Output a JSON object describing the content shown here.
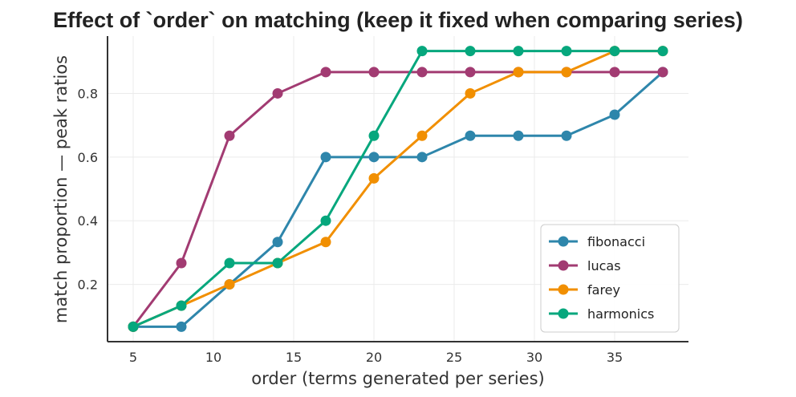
{
  "chart_data": {
    "type": "line",
    "title": "Effect of `order` on matching (keep it fixed when comparing series)",
    "xlabel": "order (terms generated per series)",
    "ylabel": "match proportion — peak ratios",
    "xlim": [
      3.4,
      39.6
    ],
    "ylim": [
      0.02,
      0.98
    ],
    "xticks": [
      5,
      10,
      15,
      20,
      25,
      30,
      35
    ],
    "yticks": [
      0.2,
      0.4,
      0.6,
      0.8
    ],
    "xtick_labels": [
      "5",
      "10",
      "15",
      "20",
      "25",
      "30",
      "35"
    ],
    "ytick_labels": [
      "0.2",
      "0.4",
      "0.6",
      "0.8"
    ],
    "grid": true,
    "legend_position": "lower-right",
    "x": [
      5,
      8,
      11,
      14,
      17,
      20,
      23,
      26,
      29,
      32,
      35,
      38
    ],
    "series": [
      {
        "name": "fibonacci",
        "color": "#2e86ab",
        "values": [
          0.067,
          0.067,
          0.2,
          0.333,
          0.6,
          0.6,
          0.6,
          0.667,
          0.667,
          0.667,
          0.733,
          0.867
        ]
      },
      {
        "name": "lucas",
        "color": "#a23b72",
        "values": [
          0.067,
          0.267,
          0.667,
          0.8,
          0.867,
          0.867,
          0.867,
          0.867,
          0.867,
          0.867,
          0.867,
          0.867
        ]
      },
      {
        "name": "farey",
        "color": "#f18f01",
        "values": [
          0.067,
          0.133,
          0.2,
          0.267,
          0.333,
          0.533,
          0.667,
          0.8,
          0.867,
          0.867,
          0.933,
          0.933
        ]
      },
      {
        "name": "harmonics",
        "color": "#06a77d",
        "values": [
          0.067,
          0.133,
          0.267,
          0.267,
          0.4,
          0.667,
          0.933,
          0.933,
          0.933,
          0.933,
          0.933,
          0.933
        ]
      }
    ]
  }
}
